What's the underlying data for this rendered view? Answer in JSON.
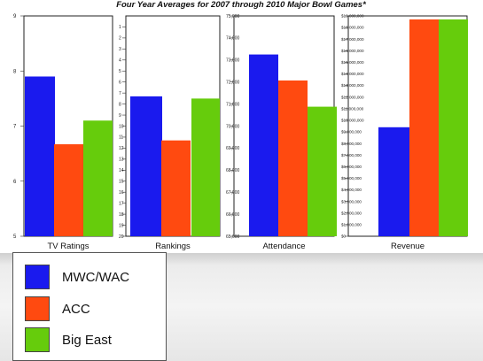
{
  "title": "Four Year Averages for 2007 through 2010 Major Bowl Games*",
  "colors": {
    "MWC/WAC": "#1a1aee",
    "ACC": "#ff4a10",
    "Big East": "#66cc0c"
  },
  "legend": {
    "items": [
      {
        "label": "MWC/WAC",
        "color": "#1a1aee"
      },
      {
        "label": "ACC",
        "color": "#ff4a10"
      },
      {
        "label": "Big East",
        "color": "#66cc0c"
      }
    ]
  },
  "chart_data": [
    {
      "type": "bar",
      "xlabel": "TV Ratings",
      "series": [
        {
          "name": "MWC/WAC",
          "values": [
            7.9
          ]
        },
        {
          "name": "ACC",
          "values": [
            6.67
          ]
        },
        {
          "name": "Big East",
          "values": [
            7.1
          ]
        }
      ],
      "ylim": [
        5,
        9
      ],
      "ticks": [
        "5",
        "6",
        "7",
        "8",
        "9"
      ],
      "inverted": false
    },
    {
      "type": "bar",
      "xlabel": "Rankings",
      "series": [
        {
          "name": "MWC/WAC",
          "values": [
            7.3
          ]
        },
        {
          "name": "ACC",
          "values": [
            11.3
          ]
        },
        {
          "name": "Big East",
          "values": [
            7.5
          ]
        }
      ],
      "ylim": [
        0,
        20
      ],
      "ticks": [
        "1",
        "2",
        "3",
        "4",
        "5",
        "6",
        "7",
        "8",
        "9",
        "10",
        "11",
        "12",
        "13",
        "14",
        "15",
        "16",
        "17",
        "18",
        "19",
        "20"
      ],
      "inverted": true
    },
    {
      "type": "bar",
      "xlabel": "Attendance",
      "series": [
        {
          "name": "MWC/WAC",
          "values": [
            73250
          ]
        },
        {
          "name": "ACC",
          "values": [
            72070
          ]
        },
        {
          "name": "Big East",
          "values": [
            70880
          ]
        }
      ],
      "ylim": [
        65000,
        75000
      ],
      "ticks": [
        "65,000",
        "66,000",
        "67,000",
        "68,000",
        "69,000",
        "70,000",
        "71,000",
        "72,000",
        "73,000",
        "74,000",
        "75,000"
      ],
      "inverted": false
    },
    {
      "type": "bar",
      "xlabel": "Revenue",
      "series": [
        {
          "name": "MWC/WAC",
          "values": [
            9400000
          ]
        },
        {
          "name": "ACC",
          "values": [
            18700000
          ]
        },
        {
          "name": "Big East",
          "values": [
            18700000
          ]
        }
      ],
      "ylim": [
        0,
        19000000
      ],
      "ticks": [
        "$0",
        "$1,000,000",
        "$2,000,000",
        "$3,000,000",
        "$4,000,000",
        "$5,000,000",
        "$6,000,000",
        "$7,000,000",
        "$8,000,000",
        "$9,000,000",
        "$10,000,000",
        "$11,000,000",
        "$12,000,000",
        "$13,000,000",
        "$14,000,000",
        "$15,000,000",
        "$16,000,000",
        "$17,000,000",
        "$18,000,000",
        "$19,000,000"
      ],
      "inverted": false
    }
  ]
}
